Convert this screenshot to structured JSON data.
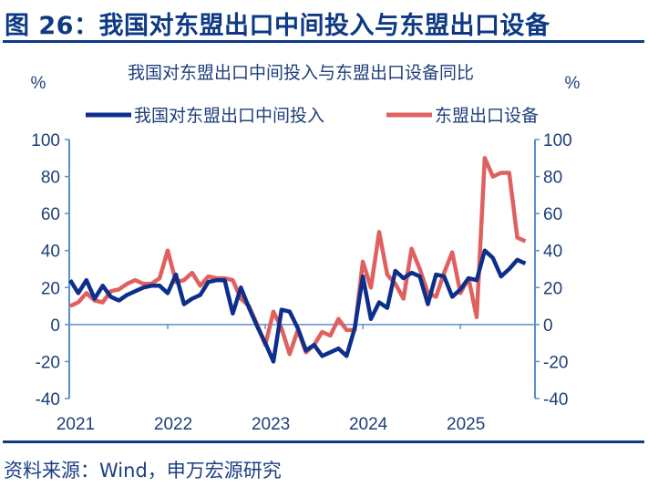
{
  "figure_title": "图 26：我国对东盟出口中间投入与东盟出口设备",
  "source": "资料来源：Wind，申万宏源研究",
  "chart_data": {
    "type": "line",
    "title": "我国对东盟出口中间投入与东盟出口设备同比",
    "left_unit": "%",
    "right_unit": "%",
    "legend_position": "top",
    "grid": false,
    "x_start": "2021-01",
    "x_frequency": "monthly",
    "x_tick_labels": [
      "2021",
      "2022",
      "2023",
      "2024",
      "2025"
    ],
    "y_ticks": [
      "100",
      "80",
      "60",
      "40",
      "20",
      "0",
      "-20",
      "-40"
    ],
    "ylim": [
      -40,
      100
    ],
    "series": [
      {
        "name": "我国对东盟出口中间投入",
        "color": "#0d2f8c",
        "values": [
          24,
          17,
          24,
          14,
          21,
          15,
          13,
          16,
          18,
          20,
          21,
          21,
          17,
          27,
          11,
          14,
          16,
          23,
          24,
          24,
          6,
          20,
          9,
          -1,
          -10,
          -20,
          8,
          7,
          -2,
          -14,
          -11,
          -17,
          -15,
          -13,
          -17,
          -2,
          26,
          3,
          12,
          9,
          29,
          25,
          28,
          26,
          11,
          27,
          26,
          15,
          19,
          25,
          24,
          40,
          36,
          26,
          30,
          35,
          33
        ]
      },
      {
        "name": "东盟出口设备",
        "color": "#e06060",
        "values": [
          10,
          12,
          17,
          13,
          12,
          18,
          19,
          22,
          24,
          22,
          22,
          25,
          40,
          23,
          24,
          28,
          21,
          26,
          25,
          25,
          24,
          14,
          10,
          0,
          -11,
          7,
          -2,
          -16,
          -3,
          -15,
          -11,
          -4,
          -6,
          3,
          -3,
          -3,
          34,
          20,
          50,
          27,
          22,
          14,
          41,
          30,
          17,
          15,
          28,
          39,
          17,
          25,
          4,
          90,
          80,
          82,
          82,
          47,
          45
        ]
      }
    ]
  }
}
